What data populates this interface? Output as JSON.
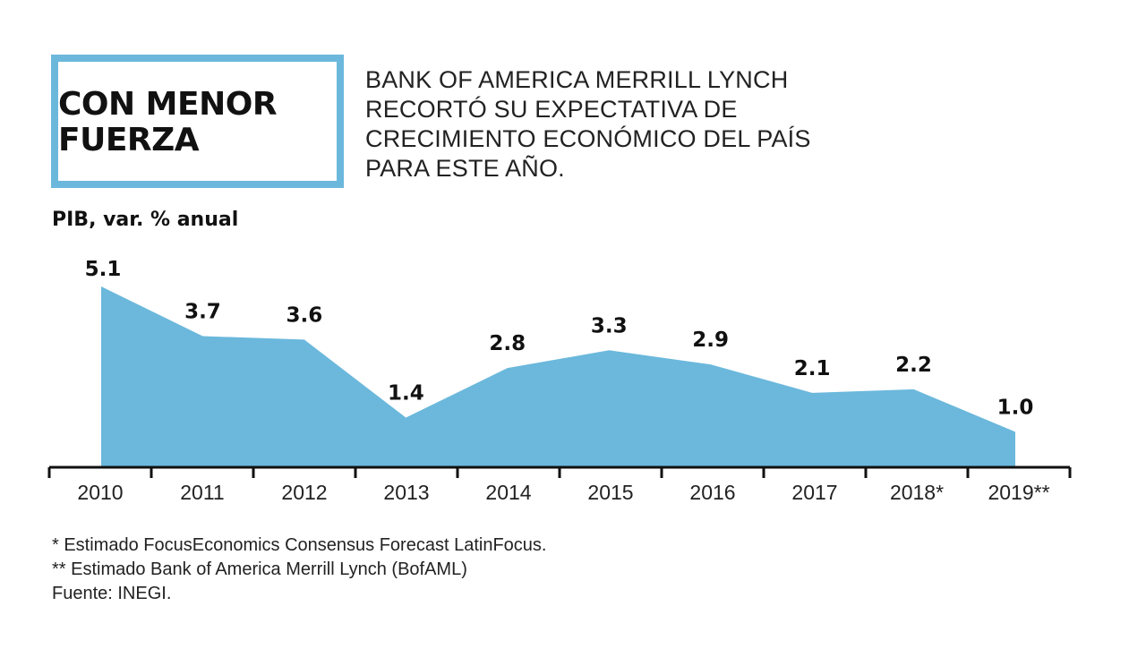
{
  "header": {
    "title": "CON MENOR\nFUERZA",
    "subtitle": "BANK OF AMERICA MERRILL LYNCH RECORTÓ SU EXPECTATIVA DE CRECIMIENTO ECONÓMICO DEL PAÍS PARA ESTE AÑO."
  },
  "colors": {
    "accent": "#6bb8dc",
    "area_fill": "#6bb8dc",
    "axis": "#111111"
  },
  "chart_data": {
    "type": "area",
    "ylabel": "PIB, var. % anual",
    "categories": [
      "2010",
      "2011",
      "2012",
      "2013",
      "2014",
      "2015",
      "2016",
      "2017",
      "2018*",
      "2019**"
    ],
    "values": [
      5.1,
      3.7,
      3.6,
      1.4,
      2.8,
      3.3,
      2.9,
      2.1,
      2.2,
      1.0
    ],
    "value_labels": [
      "5.1",
      "3.7",
      "3.6",
      "1.4",
      "2.8",
      "3.3",
      "2.9",
      "2.1",
      "2.2",
      "1.0"
    ],
    "ylim": [
      0,
      5.1
    ],
    "grid": false
  },
  "footnotes": [
    "* Estimado FocusEconomics Consensus Forecast LatinFocus.",
    "** Estimado Bank of America Merrill Lynch (BofAML)",
    "Fuente: INEGI."
  ]
}
